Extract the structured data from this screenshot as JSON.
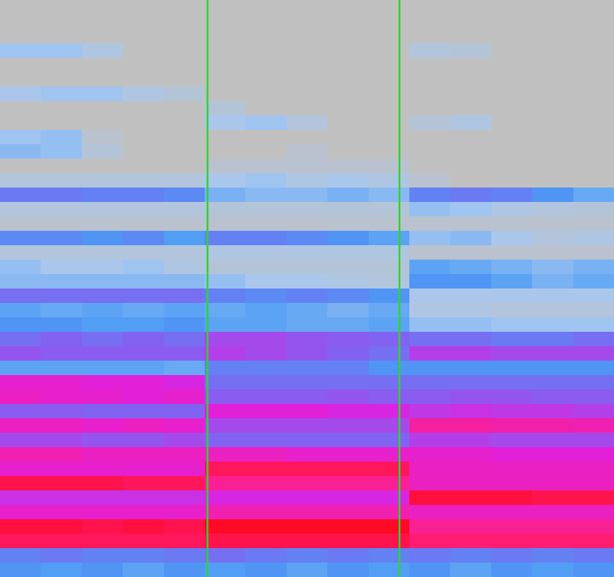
{
  "chart_data": {
    "type": "heatmap",
    "tick_labels": false,
    "grid": false,
    "x": [
      0.5,
      1.5,
      2.5,
      3.5,
      4.5,
      5.5,
      6.5,
      7.5,
      8.5,
      9.5,
      10.5,
      11.5,
      12.5,
      13.5,
      14.5
    ],
    "y": [
      0.5,
      1.5,
      2.5,
      3.5,
      4.5,
      5.5,
      6.5,
      7.5,
      8.5,
      9.5,
      10.5,
      11.5,
      12.5,
      13.5,
      14.5,
      15.5,
      16.5,
      17.5,
      18.5,
      19.5,
      20.5,
      21.5,
      22.5,
      23.5,
      24.5,
      25.5,
      26.5,
      27.5,
      28.5,
      29.5,
      30.5,
      31.5,
      32.5,
      33.5,
      34.5,
      35.5,
      36.5,
      37.5,
      38.5,
      39.5
    ],
    "xlim": [
      0,
      15
    ],
    "ylim": [
      40,
      0
    ],
    "zlim": [
      0,
      100
    ],
    "vlines": [
      5.07,
      9.76
    ],
    "vline_color": "#22dd22",
    "colorscale": [
      "#c0c0c0",
      "#a8c8f0",
      "#4a9af5",
      "#8a5cf0",
      "#e020e0",
      "#ff2080",
      "#ff0000"
    ],
    "cells": [
      [
        0,
        0,
        0,
        0,
        0,
        0,
        0,
        0,
        0,
        0,
        0,
        0,
        0,
        0,
        0
      ],
      [
        0,
        0,
        0,
        0,
        0,
        0,
        0,
        0,
        0,
        0,
        0,
        0,
        0,
        0,
        0
      ],
      [
        0,
        0,
        0,
        0,
        0,
        0,
        0,
        0,
        0,
        0,
        0,
        0,
        0,
        0,
        0
      ],
      [
        18,
        18,
        12,
        0,
        0,
        0,
        0,
        0,
        0,
        0,
        10,
        8,
        0,
        0,
        0
      ],
      [
        0,
        0,
        0,
        0,
        0,
        0,
        0,
        0,
        0,
        0,
        0,
        0,
        0,
        0,
        0
      ],
      [
        0,
        0,
        0,
        0,
        0,
        0,
        0,
        0,
        0,
        0,
        0,
        0,
        0,
        0,
        0
      ],
      [
        15,
        18,
        18,
        12,
        8,
        0,
        0,
        0,
        0,
        0,
        0,
        0,
        0,
        0,
        0
      ],
      [
        0,
        0,
        0,
        0,
        0,
        8,
        0,
        0,
        0,
        0,
        0,
        0,
        0,
        0,
        0
      ],
      [
        0,
        0,
        0,
        0,
        0,
        15,
        18,
        10,
        0,
        0,
        8,
        12,
        0,
        0,
        0
      ],
      [
        18,
        20,
        5,
        0,
        0,
        0,
        0,
        0,
        0,
        0,
        0,
        0,
        0,
        0,
        0
      ],
      [
        22,
        20,
        8,
        0,
        0,
        0,
        0,
        5,
        0,
        0,
        0,
        0,
        0,
        0,
        0
      ],
      [
        0,
        0,
        0,
        0,
        0,
        5,
        5,
        5,
        5,
        5,
        0,
        0,
        0,
        0,
        0
      ],
      [
        10,
        10,
        10,
        10,
        10,
        15,
        18,
        12,
        15,
        12,
        5,
        0,
        0,
        0,
        0
      ],
      [
        42,
        42,
        40,
        40,
        38,
        25,
        22,
        22,
        25,
        22,
        40,
        42,
        40,
        35,
        28
      ],
      [
        10,
        10,
        10,
        10,
        10,
        8,
        8,
        8,
        8,
        8,
        20,
        18,
        12,
        10,
        8
      ],
      [
        5,
        5,
        5,
        5,
        5,
        5,
        5,
        5,
        5,
        5,
        5,
        5,
        5,
        5,
        5
      ],
      [
        38,
        38,
        35,
        38,
        32,
        40,
        40,
        38,
        35,
        30,
        20,
        22,
        15,
        10,
        12
      ],
      [
        10,
        10,
        10,
        10,
        10,
        12,
        12,
        12,
        12,
        12,
        5,
        5,
        5,
        5,
        5
      ],
      [
        20,
        15,
        15,
        18,
        12,
        8,
        8,
        8,
        8,
        8,
        30,
        28,
        25,
        22,
        25
      ],
      [
        22,
        22,
        22,
        22,
        22,
        20,
        15,
        15,
        12,
        10,
        35,
        35,
        30,
        25,
        28
      ],
      [
        45,
        45,
        45,
        45,
        45,
        40,
        38,
        40,
        38,
        35,
        15,
        15,
        15,
        15,
        15
      ],
      [
        30,
        28,
        30,
        28,
        30,
        28,
        30,
        28,
        25,
        28,
        12,
        12,
        10,
        10,
        10
      ],
      [
        35,
        35,
        32,
        32,
        35,
        30,
        30,
        28,
        28,
        30,
        20,
        20,
        18,
        18,
        18
      ],
      [
        45,
        48,
        45,
        48,
        45,
        55,
        55,
        52,
        50,
        48,
        45,
        45,
        42,
        42,
        45
      ],
      [
        52,
        50,
        50,
        50,
        50,
        58,
        55,
        52,
        48,
        45,
        58,
        58,
        55,
        55,
        55
      ],
      [
        30,
        30,
        30,
        30,
        28,
        40,
        40,
        40,
        40,
        35,
        35,
        35,
        35,
        35,
        35
      ],
      [
        70,
        70,
        68,
        68,
        65,
        45,
        45,
        45,
        45,
        45,
        45,
        45,
        45,
        45,
        45
      ],
      [
        72,
        70,
        70,
        68,
        70,
        50,
        50,
        50,
        52,
        50,
        50,
        52,
        52,
        50,
        50
      ],
      [
        50,
        50,
        48,
        48,
        48,
        68,
        68,
        68,
        65,
        65,
        60,
        62,
        60,
        60,
        58
      ],
      [
        72,
        72,
        70,
        72,
        70,
        55,
        55,
        55,
        55,
        55,
        78,
        78,
        76,
        76,
        75
      ],
      [
        55,
        55,
        52,
        52,
        55,
        48,
        48,
        48,
        48,
        48,
        58,
        58,
        55,
        55,
        55
      ],
      [
        75,
        75,
        72,
        72,
        72,
        72,
        72,
        70,
        70,
        70,
        70,
        70,
        68,
        68,
        68
      ],
      [
        70,
        70,
        70,
        70,
        70,
        88,
        88,
        88,
        88,
        88,
        72,
        72,
        72,
        72,
        72
      ],
      [
        90,
        90,
        90,
        88,
        88,
        80,
        80,
        80,
        80,
        80,
        72,
        72,
        72,
        72,
        72
      ],
      [
        62,
        62,
        62,
        62,
        62,
        65,
        65,
        65,
        65,
        65,
        92,
        92,
        92,
        90,
        90
      ],
      [
        70,
        70,
        70,
        70,
        70,
        75,
        75,
        75,
        75,
        75,
        72,
        72,
        72,
        72,
        72
      ],
      [
        92,
        92,
        90,
        92,
        90,
        95,
        95,
        95,
        95,
        95,
        80,
        80,
        80,
        80,
        80
      ],
      [
        88,
        88,
        88,
        88,
        88,
        90,
        90,
        90,
        90,
        90,
        85,
        85,
        85,
        85,
        85
      ],
      [
        40,
        42,
        40,
        40,
        42,
        45,
        42,
        40,
        42,
        40,
        42,
        40,
        42,
        40,
        42
      ],
      [
        35,
        32,
        35,
        30,
        35,
        32,
        35,
        30,
        35,
        32,
        35,
        30,
        35,
        32,
        35
      ]
    ]
  }
}
